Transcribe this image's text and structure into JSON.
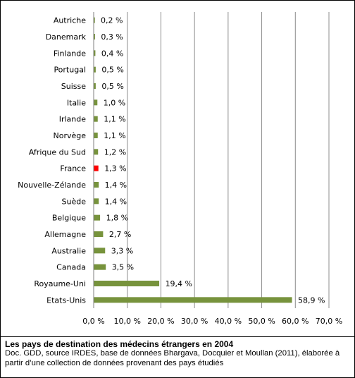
{
  "chart_data": {
    "type": "bar",
    "orientation": "horizontal",
    "categories": [
      "Autriche",
      "Danemark",
      "Finlande",
      "Portugal",
      "Suisse",
      "Italie",
      "Irlande",
      "Norvège",
      "Afrique du Sud",
      "France",
      "Nouvelle-Zélande",
      "Suède",
      "Belgique",
      "Allemagne",
      "Australie",
      "Canada",
      "Royaume-Uni",
      "Etats-Unis"
    ],
    "values": [
      0.2,
      0.3,
      0.4,
      0.5,
      0.5,
      1.0,
      1.1,
      1.1,
      1.2,
      1.3,
      1.4,
      1.4,
      1.8,
      2.7,
      3.3,
      3.5,
      19.4,
      58.9
    ],
    "value_labels": [
      "0,2 %",
      "0,3 %",
      "0,4 %",
      "0,5 %",
      "0,5 %",
      "1,0 %",
      "1,1 %",
      "1,1 %",
      "1,2 %",
      "1,3 %",
      "1,4 %",
      "1,4 %",
      "1,8 %",
      "2,7 %",
      "3,3 %",
      "3,5 %",
      "19,4 %",
      "58,9 %"
    ],
    "x_ticks": [
      "0,0 %",
      "10,0 %",
      "20,0 %",
      "30,0 %",
      "40,0 %",
      "50,0 %",
      "60,0 %",
      "70,0 %"
    ],
    "xlim": [
      0,
      70
    ],
    "grid": "vertical",
    "colors": {
      "bar": "#77933c",
      "highlight": "#ff0000",
      "grid": "#8c8c8c"
    },
    "highlight_category": "France",
    "title": "",
    "xlabel": "",
    "ylabel": ""
  },
  "caption": {
    "title": "Les pays de destination des médecins étrangers en 2004",
    "source": "Doc. GDD, source IRDES, base de données Bhargava, Docquier et Moullan (2011), élaborée à partir d’une collection de données provenant des pays étudiés"
  }
}
